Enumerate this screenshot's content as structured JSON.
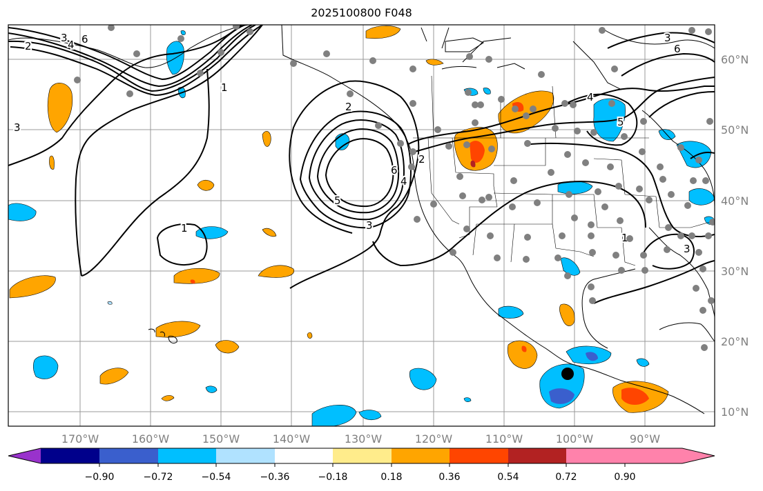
{
  "title": "2025100800 F048",
  "longitude_labels": [
    "170°W",
    "160°W",
    "150°W",
    "140°W",
    "130°W",
    "120°W",
    "110°W",
    "100°W",
    "90°W"
  ],
  "latitude_labels": [
    "60°N",
    "50°N",
    "40°N",
    "30°N",
    "20°N",
    "10°N"
  ],
  "colorbar": {
    "ticks": [
      "−0.90",
      "−0.72",
      "−0.54",
      "−0.36",
      "−0.18",
      "0.18",
      "0.36",
      "0.54",
      "0.72",
      "0.90"
    ],
    "colors": [
      "#9932cc",
      "#00008b",
      "#3a5fcd",
      "#00bfff",
      "#b0e2ff",
      "#ffffff",
      "#ffec8b",
      "#ffa500",
      "#ff4500",
      "#b22222",
      "#ff82ab"
    ]
  },
  "contour_labels": [
    "2",
    "3",
    "4",
    "6",
    "1",
    "1",
    "5",
    "3",
    "6",
    "2",
    "4",
    "4",
    "5",
    "3",
    "6",
    "3",
    "2",
    "3",
    "1"
  ],
  "colors": {
    "frame": "#000000",
    "grid": "#999999",
    "station": "#808080",
    "storm_marker": "#000000"
  }
}
